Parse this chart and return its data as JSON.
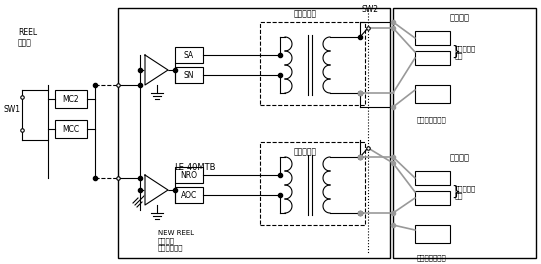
{
  "bg_color": "#ffffff",
  "line_color": "#000000",
  "gray_color": "#999999",
  "labels": {
    "REEL": "REEL\n체인지",
    "SW1": "SW1",
    "MC2": "MC2",
    "MCC": "MCC",
    "LE40MTB": "LE-40MTB",
    "NEW_REEL": "NEW REEL\n프리셋값\n토르크제한치",
    "SW2": "SW2",
    "torque1": "토르크지형",
    "torque2": "토르크제한",
    "SA": "SA",
    "SN": "SN",
    "NRO": "NRO",
    "AOC": "AOC",
    "servo1": "서보앰프",
    "tset1": "토르크설정\n단자",
    "tmode1": "토르크제어모드",
    "servo2": "서보앰프",
    "tset2": "토르크설정\n단자",
    "tmode2": "토르크제어모드"
  }
}
